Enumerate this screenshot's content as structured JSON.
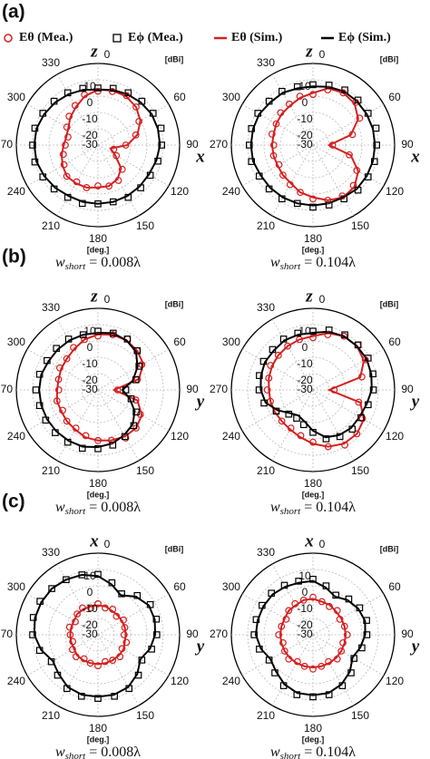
{
  "panels": [
    "(a)",
    "(b)",
    "(c)"
  ],
  "legend": [
    "Eθ (Mea.)",
    "Eϕ (Mea.)",
    "Eθ (Sim.)",
    "Eϕ (Sim.)"
  ],
  "chart_data": [
    {
      "type": "polar",
      "axis_top": "z",
      "axis_right": "x",
      "r_unit": "[dBi]",
      "theta_unit": "[deg.]",
      "caption": {
        "symbol": "w",
        "subscript": "short",
        "text": "= 0.008λ"
      },
      "rlim": [
        -30,
        20
      ],
      "rticks": [
        -30,
        -20,
        -10,
        0,
        10
      ],
      "thetaticks": [
        0,
        60,
        90,
        120,
        150,
        180,
        210,
        240,
        270,
        300,
        330
      ],
      "theta": [
        0,
        15,
        30,
        45,
        60,
        75,
        90,
        105,
        120,
        135,
        150,
        165,
        180,
        195,
        210,
        225,
        240,
        255,
        270,
        285,
        300,
        315,
        330,
        345
      ],
      "series": [
        {
          "color": "#d42020",
          "marker": "circle",
          "values": [
            3,
            4,
            5,
            3,
            -1,
            -6,
            -13,
            -20,
            -17,
            -9,
            -5,
            -4,
            -5,
            -3,
            -4,
            -3,
            -6,
            -8,
            -10,
            -11,
            -8,
            -5,
            -2,
            2
          ]
        },
        {
          "color": "#000000",
          "marker": "square",
          "values": [
            5,
            6,
            7,
            8,
            9,
            10,
            9,
            8,
            7,
            7,
            7,
            6,
            6,
            7,
            7,
            8,
            9,
            10,
            10,
            10,
            9,
            8,
            7,
            6
          ]
        },
        {
          "color": "#d42020",
          "marker": "line",
          "values": [
            4,
            4.5,
            4.5,
            3,
            0,
            -5,
            -12,
            -22,
            -18,
            -10,
            -6,
            -4,
            -4,
            -3,
            -3,
            -3,
            -5,
            -7,
            -9,
            -10,
            -9,
            -6,
            -3,
            1
          ]
        },
        {
          "color": "#000000",
          "marker": "line",
          "values": [
            4,
            5,
            6,
            7,
            8,
            8,
            8,
            7,
            6,
            6,
            6,
            6,
            6,
            6,
            6,
            7,
            8,
            9,
            9,
            9,
            8,
            7,
            6,
            5
          ]
        }
      ]
    },
    {
      "type": "polar",
      "axis_top": "z",
      "axis_right": "x",
      "r_unit": "[dBi]",
      "theta_unit": "[deg.]",
      "caption": {
        "symbol": "w",
        "subscript": "short",
        "text": "= 0.104λ"
      },
      "rlim": [
        -30,
        20
      ],
      "rticks": [
        -30,
        -20,
        -10,
        0,
        10
      ],
      "thetaticks": [
        0,
        60,
        90,
        120,
        150,
        180,
        210,
        240,
        270,
        300,
        330
      ],
      "theta": [
        0,
        15,
        30,
        45,
        60,
        75,
        90,
        105,
        120,
        135,
        150,
        165,
        180,
        195,
        210,
        225,
        240,
        255,
        270,
        285,
        300,
        315,
        330,
        345
      ],
      "series": [
        {
          "color": "#d42020",
          "marker": "circle",
          "values": [
            1,
            5,
            7,
            7,
            3,
            -5,
            -18,
            -7,
            1,
            5,
            6,
            5,
            3,
            0,
            -2,
            -4,
            -6,
            -5,
            -6,
            -4,
            -4,
            -2,
            -1,
            1
          ]
        },
        {
          "color": "#000000",
          "marker": "square",
          "values": [
            7,
            8,
            9,
            9,
            9,
            10,
            9,
            9,
            9,
            9,
            8,
            8,
            8,
            7,
            8,
            8,
            8,
            9,
            9,
            9,
            9,
            8,
            8,
            7
          ]
        },
        {
          "color": "#d42020",
          "marker": "line",
          "values": [
            2,
            6,
            7,
            6,
            2,
            -6,
            -20,
            -6,
            2,
            6,
            7,
            5,
            2,
            0,
            -3,
            -4,
            -5,
            -5,
            -5,
            -5,
            -4,
            -3,
            -2,
            0
          ]
        },
        {
          "color": "#000000",
          "marker": "line",
          "values": [
            6,
            7,
            8,
            8,
            8,
            8,
            8,
            8,
            8,
            8,
            7,
            7,
            7,
            7,
            7,
            7,
            7,
            8,
            8,
            8,
            8,
            7,
            7,
            6
          ]
        }
      ]
    },
    {
      "type": "polar",
      "axis_top": "z",
      "axis_right": "y",
      "r_unit": "[dBi]",
      "theta_unit": "[deg.]",
      "caption": {
        "symbol": "w",
        "subscript": "short",
        "text": "= 0.008λ"
      },
      "rlim": [
        -30,
        20
      ],
      "rticks": [
        -30,
        -20,
        -10,
        0,
        10
      ],
      "thetaticks": [
        0,
        60,
        90,
        120,
        150,
        180,
        210,
        240,
        270,
        300,
        330
      ],
      "theta": [
        0,
        15,
        30,
        45,
        60,
        75,
        90,
        105,
        120,
        135,
        150,
        165,
        180,
        195,
        210,
        225,
        240,
        255,
        270,
        285,
        300,
        315,
        330,
        345
      ],
      "series": [
        {
          "color": "#d42020",
          "marker": "circle",
          "values": [
            3,
            5,
            6,
            4,
            1,
            -5,
            -18,
            -6,
            0,
            3,
            4,
            2,
            1,
            -1,
            -3,
            -3,
            -5,
            -4,
            -6,
            -5,
            -3,
            -3,
            0,
            2
          ]
        },
        {
          "color": "#000000",
          "marker": "square",
          "values": [
            6,
            6,
            6,
            4,
            -1,
            -6,
            -13,
            -9,
            -3,
            1,
            3,
            5,
            6,
            7,
            7,
            7,
            7,
            7,
            8,
            7,
            6,
            6,
            6,
            5
          ]
        },
        {
          "color": "#d42020",
          "marker": "line",
          "values": [
            4,
            5,
            5,
            4,
            2,
            -4,
            -20,
            -5,
            1,
            3,
            3,
            2,
            1,
            0,
            -2,
            -3,
            -4,
            -4,
            -5,
            -5,
            -4,
            -3,
            -1,
            2
          ]
        },
        {
          "color": "#000000",
          "marker": "line",
          "values": [
            5,
            6,
            5,
            3,
            -2,
            -8,
            -15,
            -10,
            -4,
            0,
            2,
            4,
            5,
            6,
            6,
            6,
            6,
            6,
            6,
            6,
            5,
            5,
            5,
            5
          ]
        }
      ]
    },
    {
      "type": "polar",
      "axis_top": "z",
      "axis_right": "y",
      "r_unit": "[dBi]",
      "theta_unit": "[deg.]",
      "caption": {
        "symbol": "w",
        "subscript": "short",
        "text": "= 0.104λ"
      },
      "rlim": [
        -30,
        20
      ],
      "rticks": [
        -30,
        -20,
        -10,
        0,
        10
      ],
      "thetaticks": [
        0,
        60,
        90,
        120,
        150,
        180,
        210,
        240,
        270,
        300,
        330
      ],
      "theta": [
        0,
        15,
        30,
        45,
        60,
        75,
        90,
        105,
        120,
        135,
        150,
        165,
        180,
        195,
        210,
        225,
        240,
        255,
        270,
        285,
        300,
        315,
        330,
        345
      ],
      "series": [
        {
          "color": "#d42020",
          "marker": "circle",
          "values": [
            2,
            5,
            8,
            9,
            7,
            1,
            -17,
            -1,
            5,
            8,
            9,
            6,
            2,
            -1,
            -3,
            -3,
            -4,
            -3,
            -2,
            -2,
            0,
            0,
            1,
            2
          ]
        },
        {
          "color": "#000000",
          "marker": "square",
          "values": [
            6,
            8,
            9,
            9,
            9,
            8,
            7,
            5,
            4,
            4,
            3,
            1,
            -4,
            -8,
            -10,
            -9,
            -4,
            1,
            3,
            4,
            5,
            5,
            6,
            6
          ]
        },
        {
          "color": "#d42020",
          "marker": "line",
          "values": [
            3,
            6,
            8,
            8,
            6,
            0,
            -20,
            0,
            6,
            8,
            8,
            6,
            3,
            0,
            -2,
            -3,
            -3,
            -3,
            -3,
            -2,
            -1,
            0,
            1,
            2
          ]
        },
        {
          "color": "#000000",
          "marker": "line",
          "values": [
            5,
            7,
            8,
            8,
            8,
            7,
            6,
            4,
            3,
            3,
            2,
            0,
            -5,
            -10,
            -12,
            -10,
            -5,
            0,
            2,
            3,
            4,
            4,
            5,
            5
          ]
        }
      ]
    },
    {
      "type": "polar",
      "axis_top": "x",
      "axis_right": "y",
      "r_unit": "[dBi]",
      "theta_unit": "[deg.]",
      "caption": {
        "symbol": "w",
        "subscript": "short",
        "text": "= 0.008λ"
      },
      "rlim": [
        -30,
        20
      ],
      "rticks": [
        -30,
        -20,
        -10,
        0,
        10
      ],
      "thetaticks": [
        0,
        60,
        90,
        120,
        150,
        180,
        210,
        240,
        270,
        300,
        330
      ],
      "theta": [
        0,
        15,
        30,
        45,
        60,
        75,
        90,
        105,
        120,
        135,
        150,
        165,
        180,
        195,
        210,
        225,
        240,
        255,
        270,
        285,
        300,
        315,
        330,
        345
      ],
      "series": [
        {
          "color": "#d42020",
          "marker": "circle",
          "values": [
            -11,
            -13,
            -12,
            -14,
            -12,
            -13,
            -14,
            -12,
            -13,
            -11,
            -12,
            -13,
            -11,
            -12,
            -13,
            -11,
            -12,
            -14,
            -13,
            -12,
            -14,
            -12,
            -11,
            -13
          ]
        },
        {
          "color": "#000000",
          "marker": "square",
          "values": [
            7,
            3,
            -1,
            4,
            7,
            7,
            6,
            4,
            1,
            5,
            8,
            9,
            9,
            9,
            8,
            5,
            3,
            7,
            10,
            11,
            11,
            10,
            9,
            8
          ]
        },
        {
          "color": "#d42020",
          "marker": "line",
          "values": [
            -12,
            -12,
            -13,
            -13,
            -13,
            -13,
            -13,
            -13,
            -12,
            -12,
            -12,
            -12,
            -12,
            -12,
            -12,
            -12,
            -13,
            -13,
            -13,
            -13,
            -13,
            -12,
            -12,
            -12
          ]
        },
        {
          "color": "#000000",
          "marker": "line",
          "values": [
            6,
            2,
            -2,
            3,
            6,
            6,
            5,
            3,
            0,
            4,
            7,
            8,
            8,
            8,
            7,
            4,
            2,
            6,
            9,
            10,
            10,
            10,
            9,
            8
          ]
        }
      ]
    },
    {
      "type": "polar",
      "axis_top": "x",
      "axis_right": "y",
      "r_unit": "[dBi]",
      "theta_unit": "[deg.]",
      "caption": {
        "symbol": "w",
        "subscript": "short",
        "text": "= 0.104λ"
      },
      "rlim": [
        -30,
        20
      ],
      "rticks": [
        -30,
        -20,
        -10,
        0,
        10
      ],
      "thetaticks": [
        0,
        60,
        90,
        120,
        150,
        180,
        210,
        240,
        270,
        300,
        330
      ],
      "theta": [
        0,
        15,
        30,
        45,
        60,
        75,
        90,
        105,
        120,
        135,
        150,
        165,
        180,
        195,
        210,
        225,
        240,
        255,
        270,
        285,
        300,
        315,
        330,
        345
      ],
      "series": [
        {
          "color": "#d42020",
          "marker": "circle",
          "values": [
            -7,
            -9,
            -10,
            -9,
            -11,
            -10,
            -9,
            -11,
            -10,
            -9,
            -11,
            -10,
            -9,
            -10,
            -11,
            -9,
            -10,
            -11,
            -9,
            -10,
            -11,
            -9,
            -8,
            -8
          ]
        },
        {
          "color": "#000000",
          "marker": "square",
          "values": [
            4,
            1,
            -2,
            1,
            3,
            4,
            3,
            1,
            -1,
            3,
            6,
            8,
            8,
            8,
            6,
            3,
            1,
            4,
            6,
            6,
            6,
            6,
            5,
            4
          ]
        },
        {
          "color": "#d42020",
          "marker": "line",
          "values": [
            -8,
            -9,
            -9,
            -10,
            -10,
            -10,
            -10,
            -10,
            -10,
            -10,
            -10,
            -10,
            -10,
            -10,
            -10,
            -10,
            -10,
            -10,
            -10,
            -10,
            -10,
            -9,
            -9,
            -8
          ]
        },
        {
          "color": "#000000",
          "marker": "line",
          "values": [
            3,
            0,
            -3,
            0,
            2,
            3,
            2,
            0,
            -2,
            2,
            5,
            7,
            7,
            7,
            5,
            2,
            0,
            3,
            5,
            5,
            5,
            5,
            4,
            3
          ]
        }
      ]
    }
  ]
}
